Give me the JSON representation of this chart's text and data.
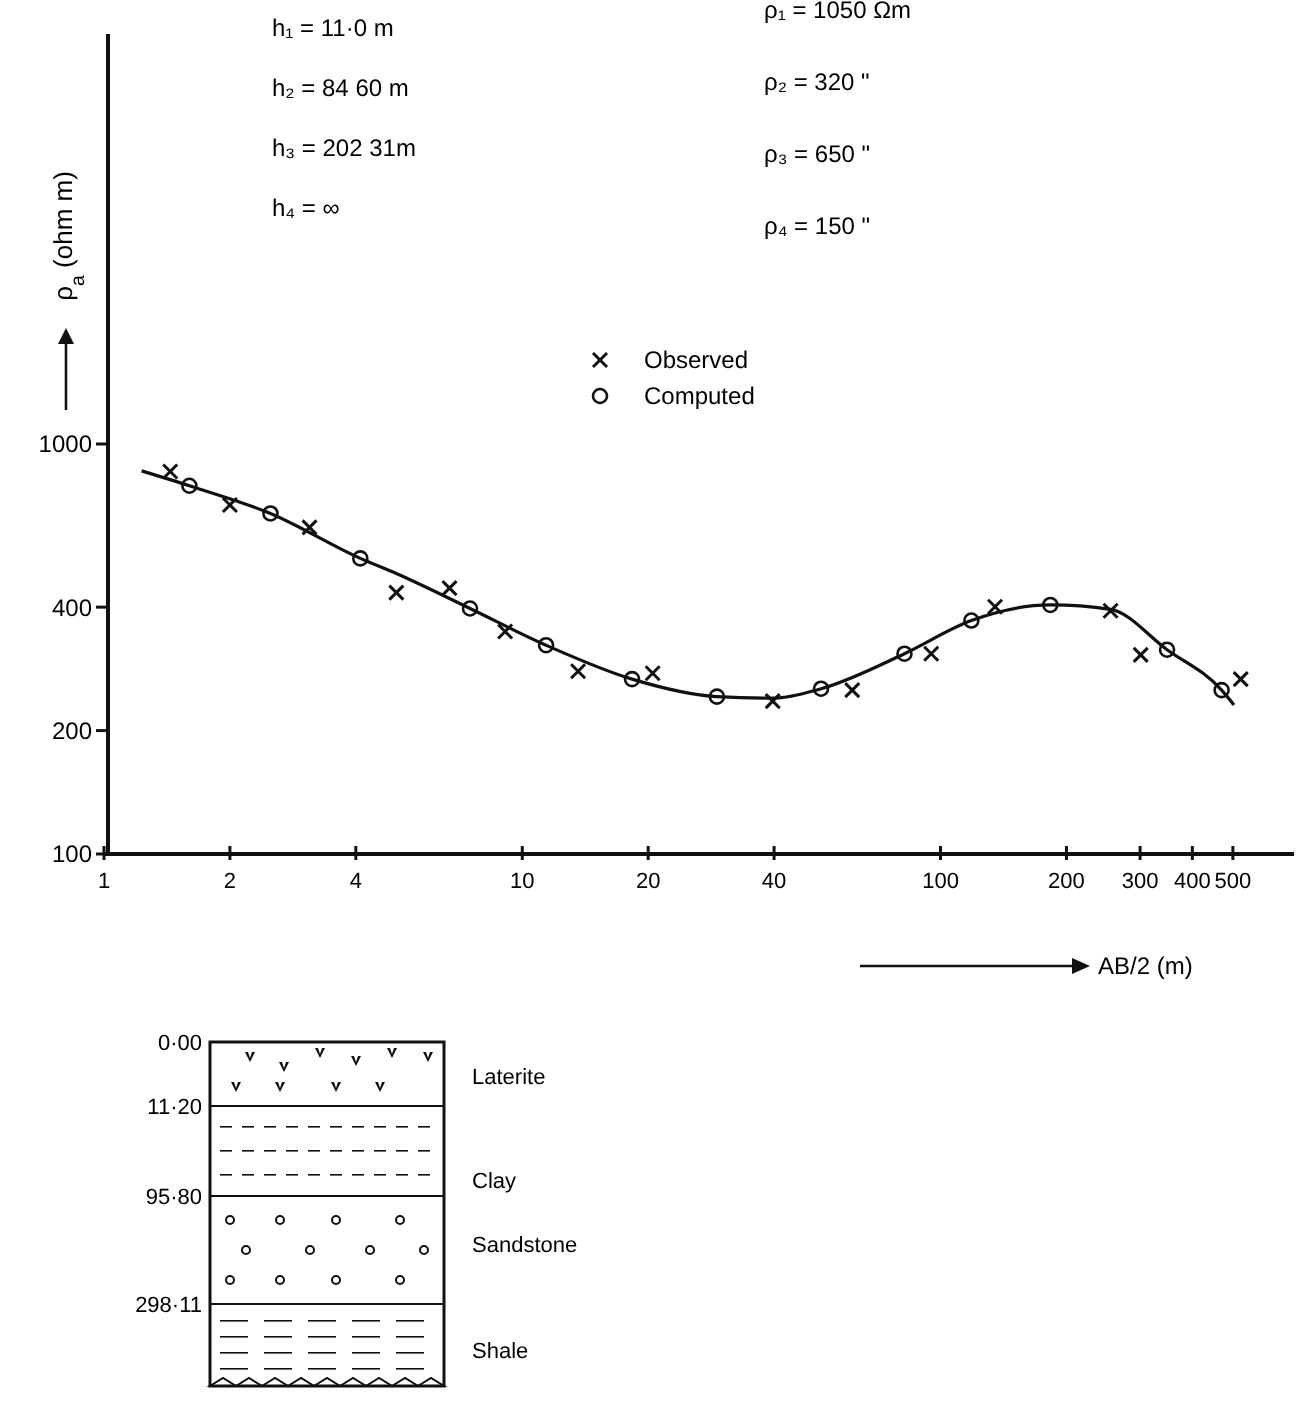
{
  "chart_data": {
    "type": "scatter",
    "xlabel": "AB/2 (m)",
    "ylabel": "ρ$_{a}$ (ohm m)",
    "log": "xy",
    "xlim": [
      1,
      700
    ],
    "ylim": [
      100,
      10000
    ],
    "xticks": [
      {
        "value": 1,
        "label": "1"
      },
      2,
      4,
      10,
      20,
      40,
      100,
      200,
      300,
      400,
      500
    ],
    "yticks": [
      100,
      200,
      400,
      1000
    ],
    "legend": "top",
    "grid": false,
    "series": [
      {
        "name": "Observed",
        "marker": "cross",
        "color": "#111111",
        "x": [
          1.44,
          2.0,
          3.1,
          5.0,
          6.7,
          9.1,
          13.6,
          20.5,
          39.7,
          61.5,
          95,
          135,
          255,
          301,
          522
        ],
        "values": [
          857,
          710,
          626,
          434,
          445,
          349,
          279,
          276,
          236,
          251,
          308,
          401,
          392,
          306,
          267
        ]
      },
      {
        "name": "Computed",
        "marker": "circle",
        "color": "#111111",
        "x": [
          1.6,
          2.5,
          4.1,
          7.5,
          11.4,
          18.3,
          29.2,
          51.8,
          82,
          118.5,
          183,
          348,
          470
        ],
        "values": [
          791,
          677,
          526,
          397,
          323,
          267,
          242,
          253,
          308,
          371,
          405,
          315,
          251
        ]
      },
      {
        "type": "line",
        "marker": "none",
        "line_style": "solid",
        "color": "#111111",
        "x": [
          1.23,
          1.6,
          2.5,
          4.1,
          5,
          7.5,
          11.4,
          18.3,
          29.2,
          40,
          51.8,
          82,
          118.5,
          183,
          255,
          348,
          470,
          503
        ],
        "values": [
          860,
          791,
          677,
          526,
          483,
          397,
          323,
          267,
          242,
          240,
          253,
          308,
          371,
          405,
          395,
          315,
          251,
          231
        ]
      }
    ],
    "annotations": [
      "h₁ = 11·0 m",
      "h₂ = 84 60 m",
      "h₃ = 202 31m",
      "h₄ = ∞",
      "ρ₁ = 1050 Ωm",
      "ρ₂ = 320 \"",
      "ρ₃ = 650 \"",
      "ρ₄ = 150 \"",
      "0·00",
      "11·20",
      "95·80",
      "298·11",
      "Laterite",
      "Clay",
      "Sandstone",
      "Shale"
    ]
  }
}
